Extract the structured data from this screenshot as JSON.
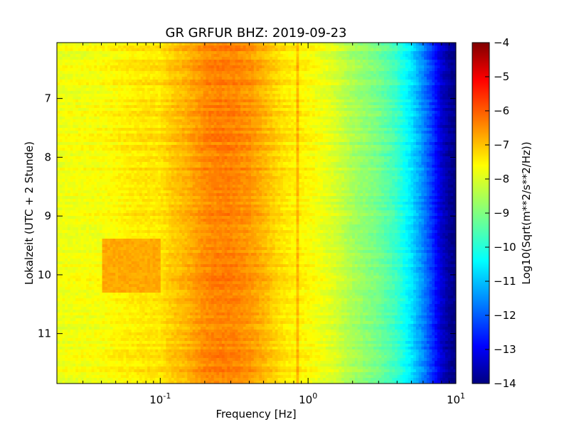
{
  "chart_data": {
    "type": "heatmap",
    "title": "GR GRFUR BHZ: 2019-09-23",
    "xlabel": "Frequency [Hz]",
    "ylabel": "Lokalzeit (UTC + 2 Stunde)",
    "x_scale": "log",
    "xlim": [
      0.02,
      10
    ],
    "ylim": [
      11.85,
      6.05
    ],
    "y_inverted": true,
    "x_ticks": [
      {
        "value": 0.1,
        "base": "10",
        "exp": "-1"
      },
      {
        "value": 1,
        "base": "10",
        "exp": "0"
      },
      {
        "value": 10,
        "base": "10",
        "exp": "1"
      }
    ],
    "y_ticks": [
      {
        "value": 7,
        "label": "7"
      },
      {
        "value": 8,
        "label": "8"
      },
      {
        "value": 9,
        "label": "9"
      },
      {
        "value": 10,
        "label": "10"
      },
      {
        "value": 11,
        "label": "11"
      }
    ],
    "colorbar": {
      "label": "Log10(Sqrt(m**2/s**2/Hz))",
      "range": [
        -14,
        -4
      ],
      "colormap": "jet",
      "ticks": [
        {
          "value": -4,
          "label": "−4"
        },
        {
          "value": -5,
          "label": "−5"
        },
        {
          "value": -6,
          "label": "−6"
        },
        {
          "value": -7,
          "label": "−7"
        },
        {
          "value": -8,
          "label": "−8"
        },
        {
          "value": -9,
          "label": "−9"
        },
        {
          "value": -10,
          "label": "−10"
        },
        {
          "value": -11,
          "label": "−11"
        },
        {
          "value": -12,
          "label": "−12"
        },
        {
          "value": -13,
          "label": "−13"
        },
        {
          "value": -14,
          "label": "−14"
        }
      ]
    },
    "spectrum_profile": {
      "frequency_hz": [
        0.02,
        0.04,
        0.06,
        0.08,
        0.1,
        0.12,
        0.15,
        0.2,
        0.25,
        0.3,
        0.4,
        0.5,
        0.6,
        0.7,
        0.8,
        1.0,
        1.5,
        2.0,
        3.0,
        4.0,
        5.0,
        6.0,
        7.0,
        8.0,
        9.0,
        10.0
      ],
      "log10_amplitude": [
        -7.9,
        -7.8,
        -7.6,
        -7.5,
        -7.5,
        -7.2,
        -7.0,
        -6.6,
        -6.5,
        -6.5,
        -6.7,
        -7.0,
        -7.3,
        -7.5,
        -7.6,
        -7.7,
        -8.1,
        -8.6,
        -9.1,
        -9.7,
        -10.5,
        -11.4,
        -12.3,
        -13.2,
        -13.7,
        -14.0
      ]
    },
    "features": [
      {
        "description": "microseism peak",
        "frequency_range_hz": [
          0.15,
          0.5
        ],
        "log10_amplitude": -6.5
      },
      {
        "description": "narrow spectral line",
        "frequency_hz": 0.85,
        "log10_amplitude": -6.9
      },
      {
        "description": "low-frequency energy burst",
        "time_range": [
          9.4,
          10.3
        ],
        "frequency_range_hz": [
          0.04,
          0.1
        ],
        "log10_amplitude": -6.9
      }
    ]
  }
}
